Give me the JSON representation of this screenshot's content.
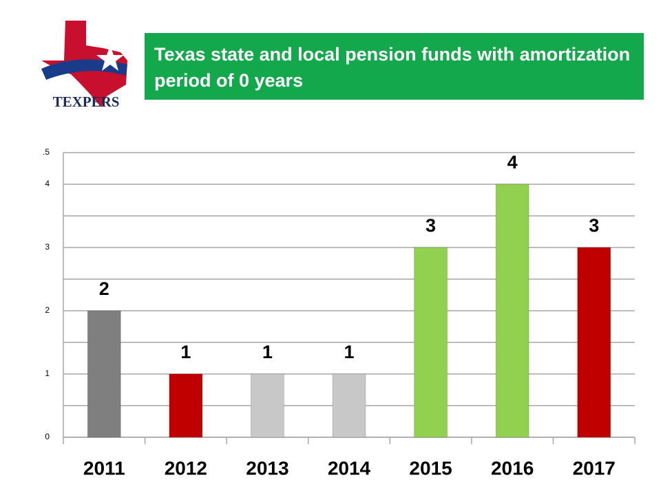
{
  "logo_text": "TEXPERS",
  "chart_data": {
    "type": "bar",
    "title": "Texas state and local pension funds with amortization period of 0 years",
    "categories": [
      "2011",
      "2012",
      "2013",
      "2014",
      "2015",
      "2016",
      "2017"
    ],
    "values": [
      2,
      1,
      1,
      1,
      3,
      4,
      3
    ],
    "colors": [
      "#7f7f7f",
      "#c00000",
      "#c8c8c8",
      "#c8c8c8",
      "#92d050",
      "#92d050",
      "#c00000"
    ],
    "ylim": [
      0,
      4.5
    ],
    "yticks": [
      0,
      1,
      2,
      3,
      4,
      {
        "value": 4.5,
        "label": ".5"
      }
    ],
    "minor_yticks": [
      0.5,
      1.5,
      2.5,
      3.5
    ],
    "grid": true
  }
}
